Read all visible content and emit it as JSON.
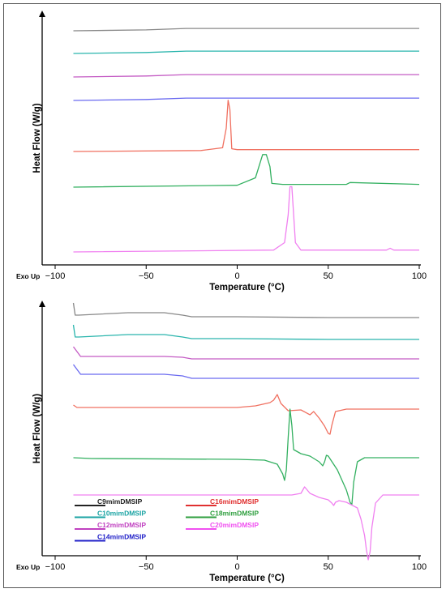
{
  "chart_data": [
    {
      "type": "line",
      "title": "",
      "xlabel": "Temperature (°C)",
      "ylabel": "Heat Flow (W/g)",
      "corner_label": "Exo Up",
      "xlim": [
        -100,
        100
      ],
      "xticks": [
        -100,
        -50,
        0,
        50,
        100
      ],
      "grid": false,
      "legend": "none",
      "series": [
        {
          "color": "#888888",
          "x": [
            -90,
            -50,
            -28,
            0,
            50,
            100
          ],
          "y": [
            0.0,
            0.2,
            0.5,
            0.5,
            0.5,
            0.5
          ]
        },
        {
          "color": "#2ab5ad",
          "x": [
            -90,
            -50,
            -28,
            0,
            50,
            100
          ],
          "y": [
            0.0,
            0.2,
            0.5,
            0.5,
            0.5,
            0.5
          ]
        },
        {
          "color": "#c45bc4",
          "x": [
            -90,
            -50,
            -28,
            0,
            50,
            100
          ],
          "y": [
            0.0,
            0.2,
            0.5,
            0.5,
            0.5,
            0.5
          ]
        },
        {
          "color": "#6a6af0",
          "x": [
            -90,
            -50,
            -28,
            0,
            50,
            100
          ],
          "y": [
            0.0,
            0.2,
            0.5,
            0.5,
            0.5,
            0.5
          ]
        },
        {
          "color": "#f07060",
          "x": [
            -90,
            -20,
            -8,
            -6,
            -5,
            -4,
            -3,
            0,
            50,
            100
          ],
          "y": [
            0.0,
            0.1,
            0.4,
            2.5,
            5.5,
            4.5,
            0.3,
            0.2,
            0.2,
            0.2
          ]
        },
        {
          "color": "#33b060",
          "x": [
            -90,
            0,
            10,
            14,
            16,
            18,
            19,
            25,
            60,
            62,
            100
          ],
          "y": [
            0.0,
            0.2,
            1.0,
            3.5,
            3.5,
            2.2,
            0.4,
            0.3,
            0.3,
            0.5,
            0.3
          ]
        },
        {
          "color": "#f080f0",
          "x": [
            -90,
            20,
            26,
            28,
            29,
            30,
            31,
            32,
            35,
            82,
            84,
            86,
            100
          ],
          "y": [
            0.0,
            0.2,
            1.0,
            4.0,
            7.0,
            7.0,
            4.0,
            1.0,
            0.2,
            0.2,
            0.4,
            0.2,
            0.2
          ]
        }
      ]
    },
    {
      "type": "line",
      "title": "",
      "xlabel": "Temperature (°C)",
      "ylabel": "Heat Flow (W/g)",
      "corner_label": "Exo Up",
      "xlim": [
        -100,
        100
      ],
      "xticks": [
        -100,
        -50,
        0,
        50,
        100
      ],
      "grid": false,
      "legend": "bottom-left",
      "legend_entries": [
        {
          "name": "C9mimDMSIP",
          "color": "#222222"
        },
        {
          "name": "C16mimDMSIP",
          "color": "#e03030"
        },
        {
          "name": "C10mimDMSIP",
          "color": "#1aa3a3"
        },
        {
          "name": "C18mimDMSIP",
          "color": "#2e9e3e"
        },
        {
          "name": "C12mimDMSIP",
          "color": "#c040c0"
        },
        {
          "name": "C20mimDMSIP",
          "color": "#f050f0"
        },
        {
          "name": "C14mimDMSIP",
          "color": "#2020c8"
        }
      ],
      "series": [
        {
          "name": "C9mimDMSIP",
          "color": "#888888",
          "x": [
            -90,
            -89,
            -87,
            -60,
            -40,
            -30,
            -25,
            0,
            50,
            100
          ],
          "y": [
            1.5,
            0.0,
            0.0,
            0.3,
            0.3,
            0.0,
            -0.2,
            -0.2,
            -0.3,
            -0.3
          ]
        },
        {
          "name": "C10mimDMSIP",
          "color": "#2ab5ad",
          "x": [
            -90,
            -89,
            -87,
            -60,
            -40,
            -30,
            -25,
            0,
            50,
            100
          ],
          "y": [
            1.5,
            0.0,
            0.0,
            0.3,
            0.3,
            0.0,
            -0.2,
            -0.2,
            -0.3,
            -0.3
          ]
        },
        {
          "name": "C12mimDMSIP",
          "color": "#c45bc4",
          "x": [
            -90,
            -86,
            -80,
            -60,
            -40,
            -30,
            -25,
            0,
            50,
            100
          ],
          "y": [
            1.2,
            0.0,
            0.0,
            0.0,
            0.0,
            -0.1,
            -0.3,
            -0.3,
            -0.3,
            -0.3
          ]
        },
        {
          "name": "C14mimDMSIP",
          "color": "#6a6af0",
          "x": [
            -90,
            -86,
            -80,
            -60,
            -40,
            -30,
            -25,
            0,
            50,
            100
          ],
          "y": [
            1.2,
            0.0,
            0.0,
            0.0,
            0.0,
            -0.2,
            -0.5,
            -0.5,
            -0.5,
            -0.5
          ]
        },
        {
          "name": "C16mimDMSIP",
          "color": "#f07060",
          "x": [
            -90,
            -88,
            -80,
            -40,
            -30,
            0,
            10,
            16,
            18,
            20,
            22,
            24,
            28,
            35,
            40,
            42,
            45,
            48,
            50,
            51,
            52,
            54,
            60,
            100
          ],
          "y": [
            0.0,
            -0.3,
            -0.3,
            -0.3,
            -0.3,
            -0.3,
            -0.1,
            0.2,
            0.3,
            0.6,
            1.3,
            0.2,
            -0.7,
            -0.6,
            -1.2,
            -0.8,
            -1.6,
            -2.6,
            -3.5,
            -3.6,
            -2.5,
            -0.8,
            -0.5,
            -0.5
          ]
        },
        {
          "name": "C18mimDMSIP",
          "color": "#33b060",
          "x": [
            -90,
            -80,
            0,
            15,
            22,
            25,
            26,
            27,
            28,
            29,
            30,
            31,
            35,
            40,
            45,
            47,
            48,
            49,
            50,
            55,
            60,
            62,
            63,
            64,
            66,
            70,
            100
          ],
          "y": [
            0.0,
            -0.1,
            -0.2,
            -0.3,
            -0.8,
            -2.0,
            -2.8,
            -1.5,
            2.5,
            6.0,
            4.0,
            1.0,
            0.5,
            0.2,
            -0.5,
            -1.0,
            -0.5,
            0.3,
            0.2,
            -1.5,
            -4.0,
            -5.5,
            -5.8,
            -3.0,
            -0.5,
            0.0,
            0.0
          ]
        },
        {
          "name": "C20mimDMSIP",
          "color": "#f080f0",
          "x": [
            -90,
            -30,
            20,
            30,
            35,
            37,
            40,
            45,
            50,
            52,
            53,
            54,
            56,
            60,
            66,
            68,
            70,
            71,
            72,
            73,
            74,
            76,
            80,
            100
          ],
          "y": [
            0.0,
            0.0,
            0.0,
            0.0,
            0.2,
            1.0,
            0.2,
            -0.3,
            -0.6,
            -1.0,
            -1.3,
            -0.9,
            -0.7,
            -0.9,
            -1.6,
            -3.0,
            -5.0,
            -6.8,
            -8.0,
            -7.0,
            -4.0,
            -1.0,
            0.0,
            0.0
          ]
        }
      ]
    }
  ]
}
